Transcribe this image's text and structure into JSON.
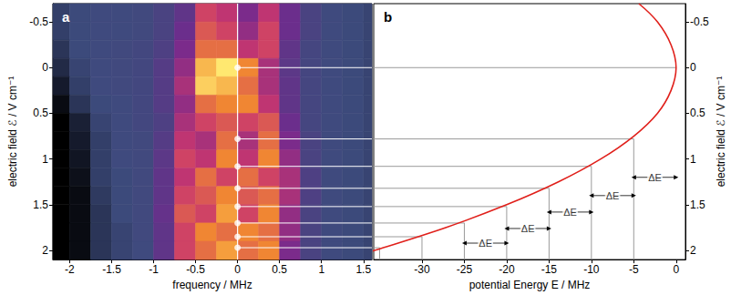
{
  "chart_data": [
    {
      "type": "heatmap",
      "title": "a",
      "x_label": "frequency / MHz",
      "y_label": "electric field ℰ / V cm⁻¹",
      "xlim": [
        -2.2,
        1.6
      ],
      "xticks": [
        -2,
        -1.5,
        -1,
        -0.5,
        0,
        0.5,
        1,
        1.5
      ],
      "ylim": [
        -0.7,
        2.1
      ],
      "yticks": [
        -0.5,
        0,
        0.5,
        1,
        1.5,
        2
      ],
      "grid": false,
      "x_edges": [
        -2.25,
        -2,
        -1.75,
        -1.5,
        -1.25,
        -1,
        -0.75,
        -0.5,
        -0.25,
        0,
        0.25,
        0.5,
        0.75,
        1,
        1.25,
        1.5,
        1.75
      ],
      "y_edges": [
        -0.7,
        -0.5,
        -0.3,
        -0.1,
        0.1,
        0.3,
        0.5,
        0.7,
        0.9,
        1.1,
        1.3,
        1.5,
        1.7,
        1.9,
        2.1
      ],
      "cells": [
        [
          0.12,
          0.14,
          0.15,
          0.15,
          0.16,
          0.2,
          0.3,
          0.6,
          0.55,
          0.4,
          0.55,
          0.35,
          0.2,
          0.15,
          0.14,
          0.13
        ],
        [
          0.12,
          0.14,
          0.15,
          0.15,
          0.16,
          0.2,
          0.35,
          0.65,
          0.6,
          0.45,
          0.6,
          0.35,
          0.2,
          0.15,
          0.14,
          0.13
        ],
        [
          0.1,
          0.14,
          0.15,
          0.16,
          0.17,
          0.22,
          0.4,
          0.7,
          0.7,
          0.55,
          0.6,
          0.3,
          0.18,
          0.15,
          0.14,
          0.13
        ],
        [
          0.08,
          0.13,
          0.15,
          0.16,
          0.17,
          0.25,
          0.45,
          0.85,
          0.95,
          0.75,
          0.5,
          0.28,
          0.18,
          0.15,
          0.14,
          0.13
        ],
        [
          0.05,
          0.12,
          0.15,
          0.16,
          0.17,
          0.25,
          0.5,
          0.9,
          0.85,
          0.7,
          0.5,
          0.3,
          0.18,
          0.15,
          0.14,
          0.13
        ],
        [
          0.02,
          0.1,
          0.14,
          0.15,
          0.17,
          0.25,
          0.45,
          0.7,
          0.75,
          0.75,
          0.55,
          0.3,
          0.18,
          0.15,
          0.14,
          0.13
        ],
        [
          0.0,
          0.06,
          0.13,
          0.15,
          0.17,
          0.22,
          0.5,
          0.6,
          0.65,
          0.6,
          0.65,
          0.35,
          0.18,
          0.15,
          0.14,
          0.13
        ],
        [
          0.0,
          0.05,
          0.12,
          0.15,
          0.16,
          0.25,
          0.55,
          0.5,
          0.7,
          0.5,
          0.7,
          0.4,
          0.2,
          0.15,
          0.14,
          0.13
        ],
        [
          0.0,
          0.04,
          0.12,
          0.15,
          0.16,
          0.28,
          0.6,
          0.55,
          0.75,
          0.55,
          0.75,
          0.45,
          0.2,
          0.15,
          0.14,
          0.13
        ],
        [
          0.0,
          0.03,
          0.12,
          0.14,
          0.16,
          0.3,
          0.55,
          0.7,
          0.6,
          0.7,
          0.6,
          0.5,
          0.22,
          0.15,
          0.14,
          0.13
        ],
        [
          0.0,
          0.02,
          0.11,
          0.14,
          0.16,
          0.3,
          0.6,
          0.65,
          0.75,
          0.65,
          0.7,
          0.5,
          0.22,
          0.15,
          0.14,
          0.13
        ],
        [
          0.0,
          0.02,
          0.1,
          0.14,
          0.16,
          0.32,
          0.65,
          0.6,
          0.8,
          0.6,
          0.75,
          0.45,
          0.2,
          0.15,
          0.14,
          0.13
        ],
        [
          0.0,
          0.02,
          0.1,
          0.13,
          0.16,
          0.3,
          0.6,
          0.75,
          0.7,
          0.75,
          0.7,
          0.45,
          0.2,
          0.15,
          0.14,
          0.13
        ],
        [
          0.0,
          0.02,
          0.1,
          0.13,
          0.15,
          0.3,
          0.6,
          0.7,
          0.8,
          0.7,
          0.75,
          0.4,
          0.2,
          0.15,
          0.14,
          0.13
        ]
      ],
      "reference_line": {
        "x": 0,
        "color": "#ffffff"
      },
      "markers": {
        "x": [
          0,
          0,
          0,
          0,
          0,
          0,
          0,
          0
        ],
        "y": [
          0,
          0.78,
          1.08,
          1.32,
          1.52,
          1.7,
          1.85,
          1.97
        ],
        "color": "#ffffff"
      }
    },
    {
      "type": "line",
      "title": "b",
      "x_label": "potential Energy E / MHz",
      "y_label": "electric field ℰ / V cm⁻¹",
      "xlim": [
        -35.7,
        1.1
      ],
      "xticks": [
        -30,
        -25,
        -20,
        -15,
        -10,
        -5,
        0
      ],
      "ylim": [
        -0.7,
        2.1
      ],
      "yticks": [
        -0.5,
        0,
        0.5,
        1,
        1.5,
        2
      ],
      "grid": false,
      "series": [
        {
          "x": [
            -4.4,
            -2.2,
            -0.6,
            0,
            -0.6,
            -2.2,
            -5,
            -8.9,
            -13.9,
            -20,
            -27.2,
            -35.6,
            -39.2
          ],
          "y": [
            -0.7,
            -0.5,
            -0.25,
            0,
            0.25,
            0.5,
            0.75,
            1.0,
            1.25,
            1.5,
            1.75,
            2.0,
            2.1
          ],
          "color": "#e0201b"
        }
      ],
      "levels": {
        "energy": [
          0,
          -5,
          -10,
          -15,
          -20,
          -25,
          -30,
          -35
        ],
        "field": [
          0,
          0.78,
          1.08,
          1.32,
          1.52,
          1.7,
          1.85,
          1.97
        ],
        "color": "#9a9a9a"
      },
      "annotations": [
        {
          "text": "ΔE",
          "from": -5,
          "to": 0,
          "field": 1.2
        },
        {
          "text": "ΔE",
          "from": -10,
          "to": -5,
          "field": 1.4
        },
        {
          "text": "ΔE",
          "from": -15,
          "to": -10,
          "field": 1.58
        },
        {
          "text": "ΔE",
          "from": -20,
          "to": -15,
          "field": 1.76
        },
        {
          "text": "ΔE",
          "from": -25,
          "to": -20,
          "field": 1.92
        }
      ]
    }
  ]
}
